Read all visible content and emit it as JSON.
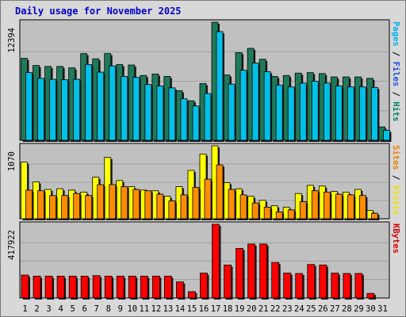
{
  "chart_data": [
    {
      "type": "bar",
      "title": "Daily usage for November 2025",
      "panel": "top",
      "ylim": [
        0,
        12394
      ],
      "ymax_label": "12394",
      "right_label": [
        "Pages",
        "Files",
        "Hits"
      ],
      "right_label_colors": [
        "#00b0f0",
        "#2050e0",
        "#008060"
      ],
      "separator": " / ",
      "categories": [
        "1",
        "2",
        "3",
        "4",
        "5",
        "6",
        "7",
        "8",
        "9",
        "10",
        "11",
        "12",
        "13",
        "14",
        "15",
        "16",
        "17",
        "18",
        "19",
        "20",
        "21",
        "22",
        "23",
        "24",
        "25",
        "26",
        "27",
        "28",
        "29",
        "30",
        "31"
      ],
      "weekend_days": [
        "1",
        "8",
        "15",
        "16",
        "22",
        "29",
        "30"
      ],
      "series": [
        {
          "name": "Hits",
          "color": "#1f7a5a",
          "values": [
            8600,
            7850,
            7750,
            7750,
            7600,
            9100,
            8550,
            9100,
            7950,
            7900,
            6800,
            6950,
            6700,
            5200,
            4150,
            5950,
            12394,
            6850,
            9200,
            9650,
            8500,
            6700,
            6800,
            7050,
            7100,
            7000,
            6650,
            6650,
            6650,
            6500,
            1400
          ]
        },
        {
          "name": "Files",
          "color": "#00c0e8",
          "values": [
            7100,
            6500,
            6400,
            6350,
            6400,
            7950,
            7150,
            7800,
            6700,
            6600,
            5850,
            5700,
            5500,
            4350,
            3600,
            4900,
            11400,
            5900,
            7350,
            8100,
            7200,
            5800,
            5600,
            6000,
            6200,
            6000,
            5700,
            5600,
            5600,
            5550,
            1050
          ]
        }
      ]
    },
    {
      "type": "bar",
      "panel": "middle",
      "ylim": [
        0,
        1070
      ],
      "ymax_label": "1070",
      "right_label": [
        "Sites",
        "Visits"
      ],
      "right_label_colors": [
        "#f08000",
        "#f0e000"
      ],
      "separator": " / ",
      "series": [
        {
          "name": "Visits",
          "color": "#ffff00",
          "values": [
            830,
            540,
            430,
            440,
            420,
            390,
            610,
            900,
            560,
            470,
            420,
            410,
            330,
            470,
            710,
            950,
            1070,
            530,
            440,
            330,
            270,
            190,
            170,
            370,
            490,
            480,
            400,
            390,
            430,
            120,
            0
          ]
        },
        {
          "name": "Sites",
          "color": "#ff8c00",
          "values": [
            420,
            410,
            340,
            340,
            370,
            340,
            500,
            500,
            470,
            430,
            410,
            360,
            260,
            350,
            460,
            580,
            790,
            430,
            350,
            230,
            170,
            100,
            130,
            250,
            410,
            390,
            360,
            350,
            340,
            80,
            0
          ]
        }
      ]
    },
    {
      "type": "bar",
      "panel": "bottom",
      "ylim": [
        0,
        417922
      ],
      "ymax_label": "417922",
      "right_label": [
        "KBytes"
      ],
      "right_label_colors": [
        "#d80000"
      ],
      "separator": "",
      "series": [
        {
          "name": "KBytes",
          "color": "#ff0000",
          "values": [
            130000,
            124000,
            124000,
            124000,
            124000,
            124000,
            127000,
            124000,
            124000,
            124000,
            124000,
            124000,
            124000,
            91000,
            36000,
            141000,
            417922,
            187000,
            281000,
            306000,
            306000,
            201000,
            141000,
            139000,
            190000,
            187000,
            141000,
            139000,
            139000,
            26000,
            0
          ]
        }
      ]
    }
  ]
}
